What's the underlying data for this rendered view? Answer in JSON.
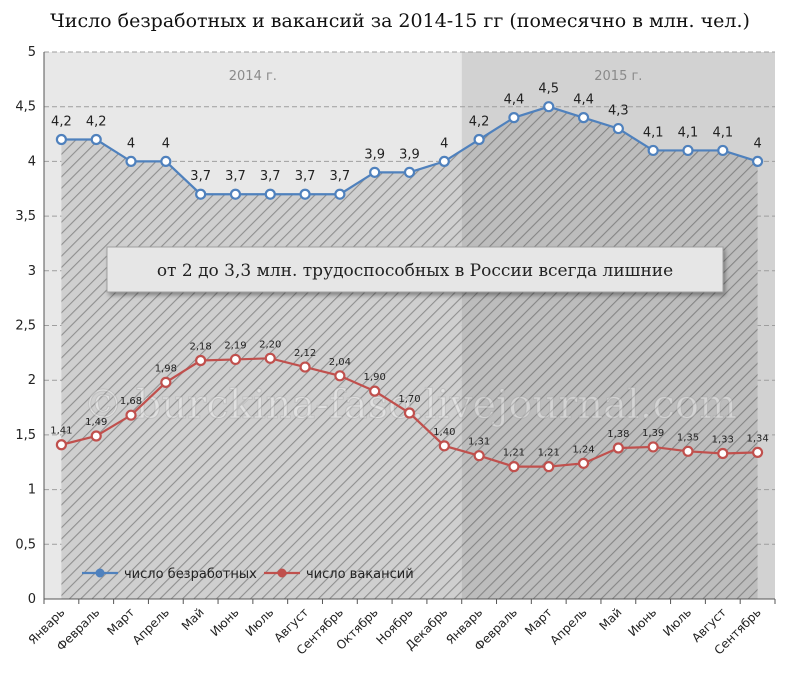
{
  "chart_data": {
    "type": "line",
    "title": "Число безработных и вакансий за 2014-15 гг (помесячно в млн. чел.)",
    "ylim": [
      0,
      5
    ],
    "yticks": [
      "0",
      "0,5",
      "1",
      "1,5",
      "2",
      "2,5",
      "3",
      "3,5",
      "4",
      "4,5",
      "5"
    ],
    "grid": true,
    "legend_position": "bottom-left",
    "periods": [
      "2014 г.",
      "2015 г."
    ],
    "annotation": "от 2 до 3,3 млн. трудоспособных в России всегда лишние",
    "watermark": "© burckina-faso.livejournal.com",
    "categories": [
      "Январь",
      "Февраль",
      "Март",
      "Апрель",
      "Май",
      "Июнь",
      "Июль",
      "Август",
      "Сентябрь",
      "Октябрь",
      "Ноябрь",
      "Декабрь",
      "Январь",
      "Февраль",
      "Март",
      "Апрель",
      "Май",
      "Июнь",
      "Июль",
      "Август",
      "Сентябрь"
    ],
    "series": [
      {
        "name": "число безработных",
        "color": "#4f81bd",
        "values": [
          4.2,
          4.2,
          4.0,
          4.0,
          3.7,
          3.7,
          3.7,
          3.7,
          3.7,
          3.9,
          3.9,
          4.0,
          4.2,
          4.4,
          4.5,
          4.4,
          4.3,
          4.1,
          4.1,
          4.1,
          4.0
        ],
        "labels": [
          "4,2",
          "4,2",
          "4",
          "4",
          "3,7",
          "3,7",
          "3,7",
          "3,7",
          "3,7",
          "3,9",
          "3,9",
          "4",
          "4,2",
          "4,4",
          "4,5",
          "4,4",
          "4,3",
          "4,1",
          "4,1",
          "4,1",
          "4"
        ]
      },
      {
        "name": "число вакансий",
        "color": "#c0504d",
        "values": [
          1.41,
          1.49,
          1.68,
          1.98,
          2.18,
          2.19,
          2.2,
          2.12,
          2.04,
          1.9,
          1.7,
          1.4,
          1.31,
          1.21,
          1.21,
          1.24,
          1.38,
          1.39,
          1.35,
          1.33,
          1.34
        ],
        "labels": [
          "1,41",
          "1,49",
          "1,68",
          "1,98",
          "2,18",
          "2,19",
          "2,20",
          "2,12",
          "2,04",
          "1,90",
          "1,70",
          "1,40",
          "1,31",
          "1,21",
          "1,21",
          "1,24",
          "1,38",
          "1,39",
          "1,35",
          "1,33",
          "1,34"
        ]
      }
    ]
  }
}
